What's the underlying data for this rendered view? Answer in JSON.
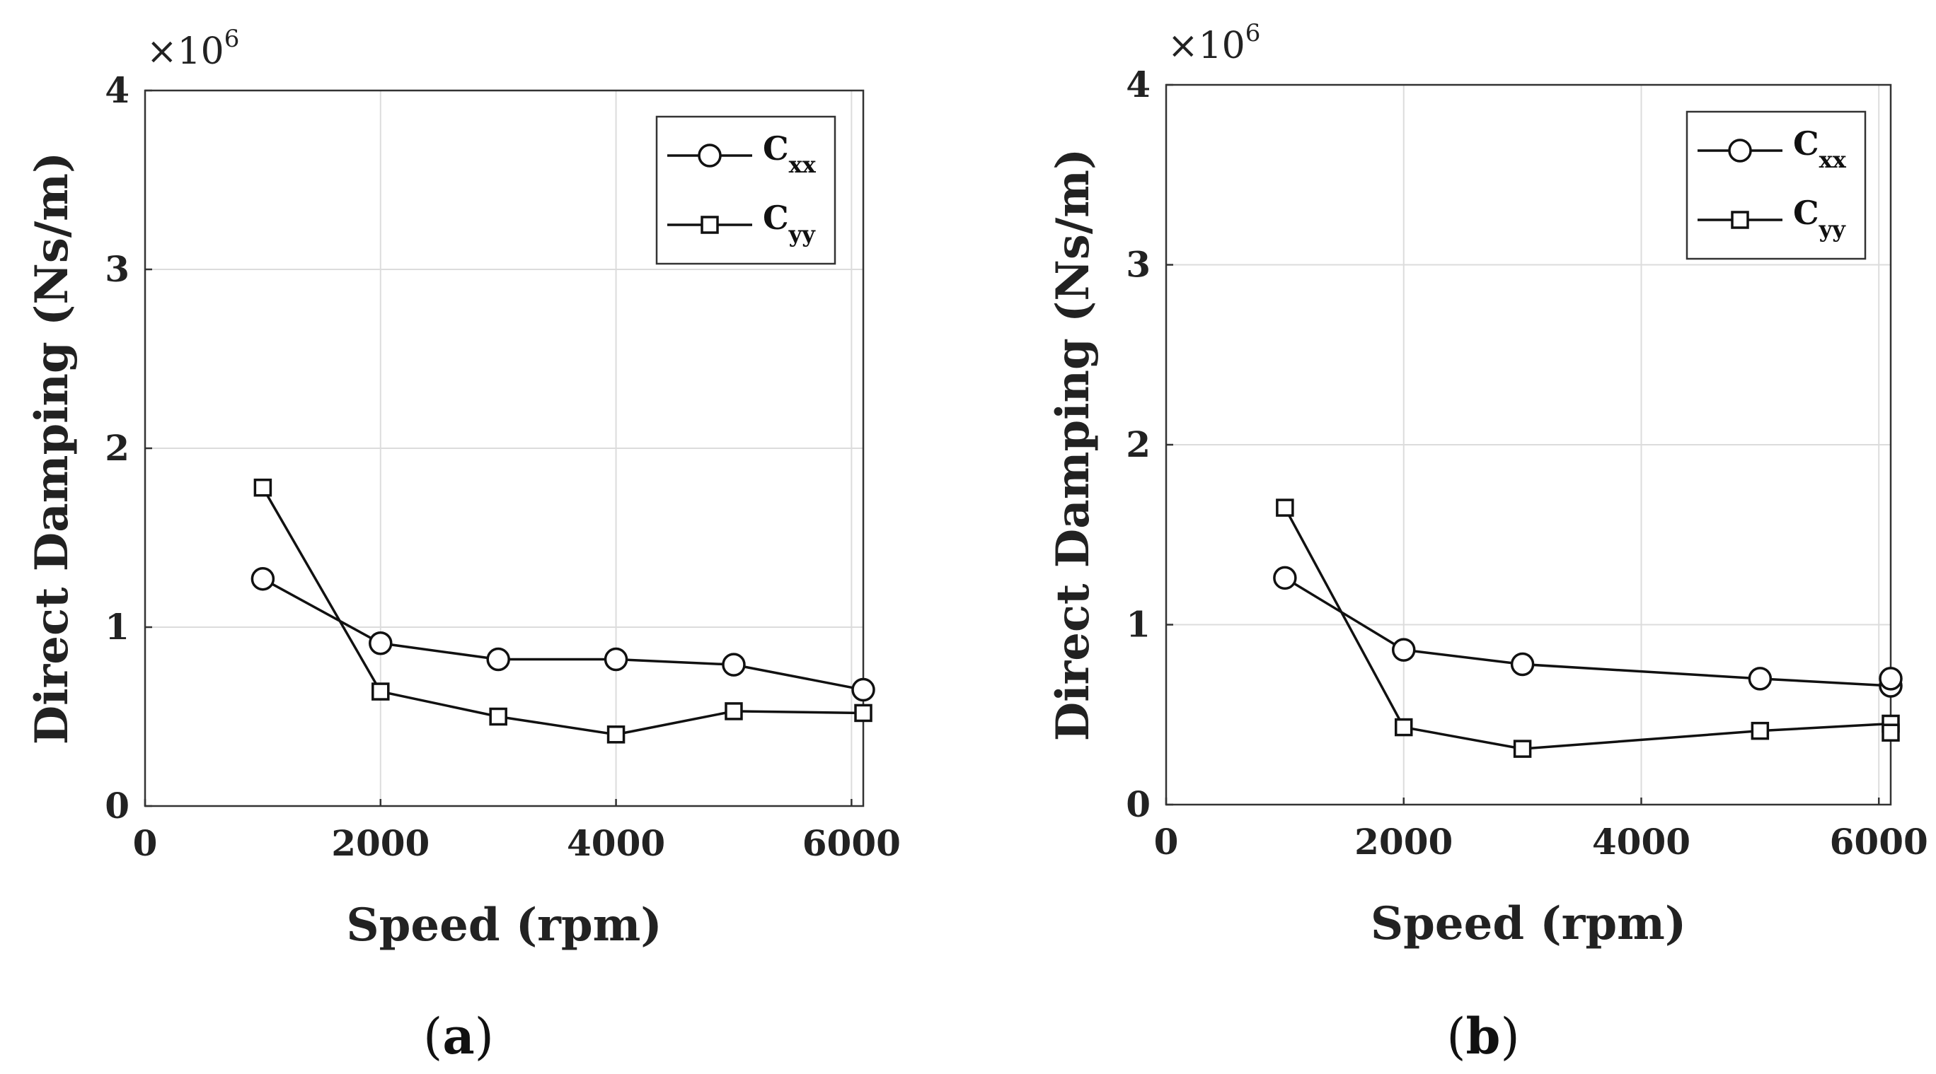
{
  "chart_data": [
    {
      "type": "line",
      "panel_label": "a",
      "xlabel": "Speed (rpm)",
      "ylabel": "Direct Damping (Ns/m)",
      "y_multiplier": {
        "base": "×10",
        "exponent": "6"
      },
      "xlim": [
        0,
        6100
      ],
      "ylim": [
        0,
        4
      ],
      "xticks": [
        0,
        2000,
        4000,
        6000
      ],
      "yticks": [
        0,
        1,
        2,
        3,
        4
      ],
      "grid": true,
      "legend_position": "top-right",
      "series": [
        {
          "name": "C",
          "sub": "xx",
          "marker": "circle",
          "x": [
            1000,
            2000,
            3000,
            4000,
            5000,
            6100
          ],
          "y": [
            1.27,
            0.91,
            0.82,
            0.82,
            0.79,
            0.65
          ]
        },
        {
          "name": "C",
          "sub": "yy",
          "marker": "square",
          "x": [
            1000,
            2000,
            3000,
            4000,
            5000,
            6100
          ],
          "y": [
            1.78,
            0.64,
            0.5,
            0.4,
            0.53,
            0.52
          ]
        }
      ]
    },
    {
      "type": "line",
      "panel_label": "b",
      "xlabel": "Speed (rpm)",
      "ylabel": "Direct Damping (Ns/m)",
      "y_multiplier": {
        "base": "×10",
        "exponent": "6"
      },
      "xlim": [
        0,
        6100
      ],
      "ylim": [
        0,
        4
      ],
      "xticks": [
        0,
        2000,
        4000,
        6000
      ],
      "yticks": [
        0,
        1,
        2,
        3,
        4
      ],
      "grid": true,
      "legend_position": "top-right",
      "series": [
        {
          "name": "C",
          "sub": "xx",
          "marker": "circle",
          "x": [
            1000,
            2000,
            3000,
            5000,
            6100,
            6100
          ],
          "y": [
            1.26,
            0.86,
            0.78,
            0.7,
            0.66,
            0.7
          ]
        },
        {
          "name": "C",
          "sub": "yy",
          "marker": "square",
          "x": [
            1000,
            2000,
            3000,
            5000,
            6100,
            6100
          ],
          "y": [
            1.65,
            0.43,
            0.31,
            0.41,
            0.45,
            0.4
          ]
        }
      ]
    }
  ]
}
